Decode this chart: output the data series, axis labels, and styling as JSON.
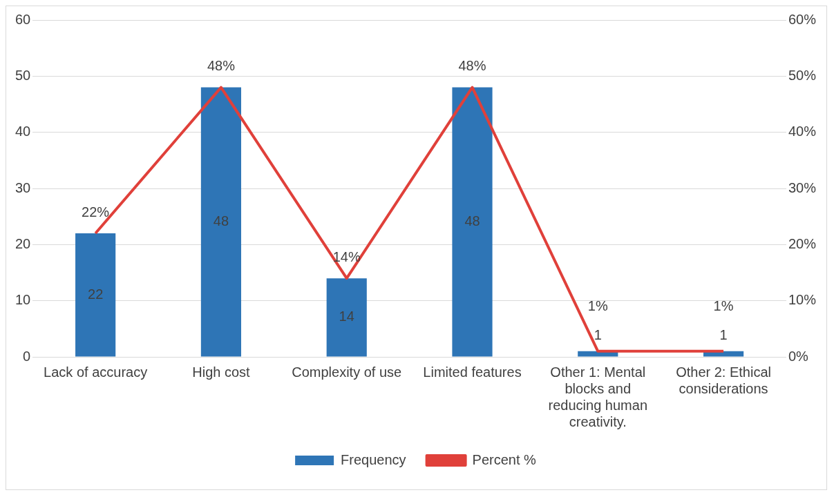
{
  "chart_data": {
    "type": "bar",
    "categories": [
      "Lack of accuracy",
      "High cost",
      "Complexity of use",
      "Limited features",
      "Other 1: Mental blocks and reducing human creativity.",
      "Other 2: Ethical considerations"
    ],
    "series": [
      {
        "name": "Frequency",
        "color": "#2e75b6",
        "values": [
          22,
          48,
          14,
          48,
          1,
          1
        ],
        "value_labels": [
          "22",
          "48",
          "14",
          "48",
          "1",
          "1"
        ]
      },
      {
        "name": "Percent %",
        "type": "line",
        "axis": "y2",
        "color": "#e0403a",
        "values": [
          22,
          48,
          14,
          48,
          1,
          1
        ],
        "value_labels": [
          "22%",
          "48%",
          "14%",
          "48%",
          "1%",
          "1%"
        ]
      }
    ],
    "ylim": [
      0,
      60
    ],
    "yticks": [
      0,
      10,
      20,
      30,
      40,
      50,
      60
    ],
    "y2lim": [
      0,
      60
    ],
    "y2ticks": [
      {
        "value": 0,
        "label": "0%"
      },
      {
        "value": 10,
        "label": "10%"
      },
      {
        "value": 20,
        "label": "20%"
      },
      {
        "value": 30,
        "label": "30%"
      },
      {
        "value": 40,
        "label": "40%"
      },
      {
        "value": 50,
        "label": "50%"
      },
      {
        "value": 60,
        "label": "60%"
      }
    ],
    "grid": "y",
    "legend": "bottom",
    "marker": "none",
    "line_style": "solid"
  }
}
